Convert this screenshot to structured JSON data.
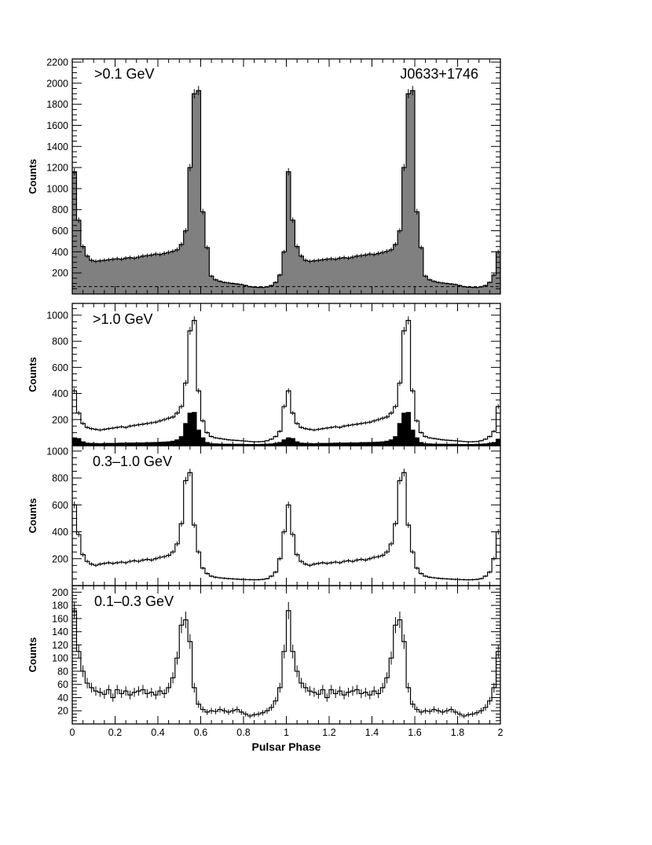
{
  "chart_data": {
    "type": "bar",
    "layout": "stacked-panels",
    "xlabel": "Pulsar Phase",
    "xlim": [
      0,
      2
    ],
    "xticks": [
      0,
      0.2,
      0.4,
      0.6,
      0.8,
      1,
      1.2,
      1.4,
      1.6,
      1.8,
      2
    ],
    "bins_per_unit_phase": 50,
    "phase_repeats": "profile shown over two rotations; phase 1-2 repeats phase 0-1",
    "panels": [
      {
        "label": ">0.1 GeV",
        "source_label": "J0633+1746",
        "ylabel": "Counts",
        "ylim": [
          0,
          2230
        ],
        "yticks": [
          200,
          400,
          600,
          800,
          1000,
          1200,
          1400,
          1600,
          1800,
          2000,
          2200
        ],
        "style": "filled-gray",
        "error_bars": true,
        "background_level": 70,
        "series": [
          {
            "values": [
              1160,
              700,
              450,
              360,
              320,
              310,
              315,
              320,
              325,
              330,
              335,
              330,
              340,
              345,
              340,
              350,
              360,
              365,
              370,
              380,
              375,
              385,
              395,
              405,
              420,
              470,
              600,
              1200,
              1900,
              1930,
              780,
              440,
              170,
              135,
              120,
              110,
              105,
              100,
              95,
              90,
              80,
              70,
              65,
              63,
              62,
              68,
              80,
              110,
              180,
              400
            ]
          }
        ]
      },
      {
        "label": ">1.0 GeV",
        "ylabel": "Counts",
        "ylim": [
          0,
          1090
        ],
        "yticks": [
          200,
          400,
          600,
          800,
          1000
        ],
        "style": "outline-with-filled-subset",
        "error_bars": true,
        "series": [
          {
            "values": [
              420,
              250,
              170,
              140,
              130,
              125,
              120,
              125,
              130,
              135,
              140,
              145,
              140,
              150,
              155,
              160,
              165,
              170,
              175,
              180,
              190,
              200,
              210,
              220,
              250,
              300,
              480,
              880,
              960,
              420,
              190,
              100,
              70,
              60,
              55,
              50,
              45,
              42,
              40,
              38,
              35,
              32,
              30,
              30,
              32,
              38,
              50,
              70,
              110,
              300
            ]
          },
          {
            "values": [
              60,
              55,
              30,
              20,
              18,
              17,
              16,
              17,
              18,
              18,
              19,
              20,
              20,
              21,
              21,
              22,
              22,
              23,
              24,
              25,
              26,
              28,
              30,
              35,
              45,
              70,
              170,
              250,
              255,
              120,
              60,
              25,
              15,
              14,
              13,
              12,
              12,
              11,
              11,
              11,
              10,
              10,
              10,
              10,
              11,
              12,
              14,
              18,
              25,
              45
            ]
          }
        ]
      },
      {
        "label": "0.3–1.0 GeV",
        "ylabel": "Counts",
        "ylim": [
          0,
          1040
        ],
        "yticks": [
          200,
          400,
          600,
          800,
          1000
        ],
        "style": "outline",
        "error_bars": true,
        "series": [
          {
            "values": [
              600,
              380,
              230,
              180,
              160,
              150,
              160,
              165,
              170,
              165,
              170,
              175,
              170,
              180,
              185,
              180,
              190,
              195,
              190,
              200,
              210,
              215,
              225,
              250,
              310,
              460,
              780,
              840,
              450,
              250,
              130,
              90,
              70,
              62,
              58,
              55,
              52,
              50,
              48,
              46,
              45,
              44,
              43,
              44,
              46,
              52,
              70,
              100,
              200,
              400
            ]
          }
        ]
      },
      {
        "label": "0.1–0.3 GeV",
        "ylabel": "Counts",
        "ylim": [
          0,
          210
        ],
        "yticks": [
          20,
          40,
          60,
          80,
          100,
          120,
          140,
          160,
          180,
          200
        ],
        "style": "outline",
        "error_bars": true,
        "series": [
          {
            "values": [
              172,
              110,
              80,
              62,
              55,
              50,
              48,
              45,
              52,
              40,
              52,
              46,
              50,
              44,
              48,
              50,
              52,
              46,
              48,
              44,
              50,
              46,
              55,
              70,
              100,
              150,
              158,
              125,
              55,
              30,
              22,
              18,
              20,
              19,
              22,
              20,
              18,
              20,
              22,
              18,
              15,
              12,
              14,
              15,
              17,
              20,
              25,
              35,
              55,
              110
            ]
          }
        ]
      }
    ]
  }
}
